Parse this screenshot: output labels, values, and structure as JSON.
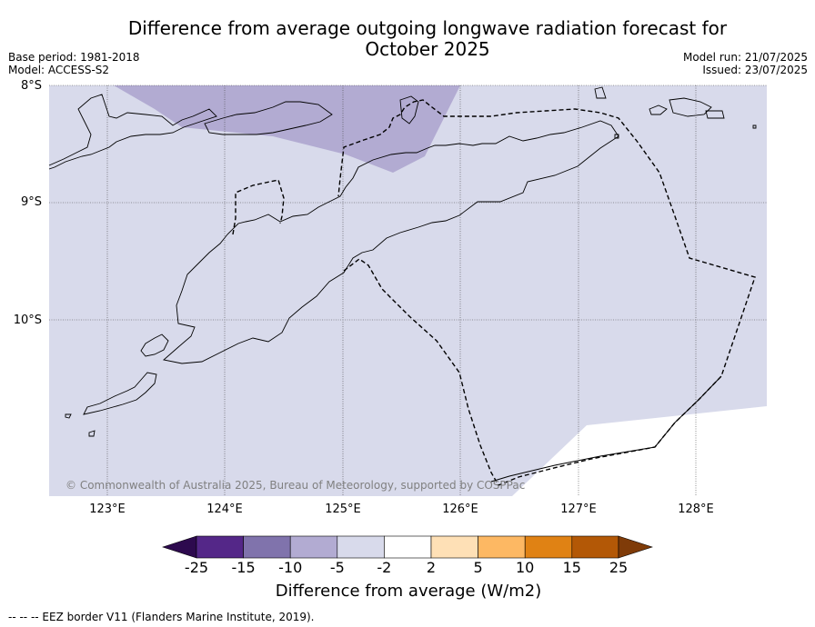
{
  "title": "Difference from average outgoing longwave radiation forecast for October 2025",
  "meta_left": [
    "Base period: 1981-2018",
    "Model: ACCESS-S2"
  ],
  "meta_right": [
    "Model run: 21/07/2025",
    "Issued: 23/07/2025"
  ],
  "lat_labels": [
    "8°S",
    "9°S",
    "10°S"
  ],
  "lon_labels": [
    "123°E",
    "124°E",
    "125°E",
    "126°E",
    "127°E",
    "128°E"
  ],
  "copyright": "© Commonwealth of Australia 2025, Bureau of Meteorology, supported by COSPPac",
  "colorbar": {
    "ticks": [
      "-25",
      "-15",
      "-10",
      "-5",
      "-2",
      "2",
      "5",
      "10",
      "15",
      "25"
    ],
    "colors": [
      "#2d0a4e",
      "#542788",
      "#8073ac",
      "#b2abd2",
      "#d8daeb",
      "#ffffff",
      "#fee0b6",
      "#fdb863",
      "#e08214",
      "#b35806",
      "#7f3b08"
    ],
    "label": "Difference from average (W/m2)"
  },
  "footer": "--  --  -- EEZ border V11 (Flanders Marine Institute, 2019).",
  "map": {
    "lon_range": [
      122.5,
      128.6
    ],
    "lat_range": [
      -11.5,
      -8.0
    ]
  }
}
